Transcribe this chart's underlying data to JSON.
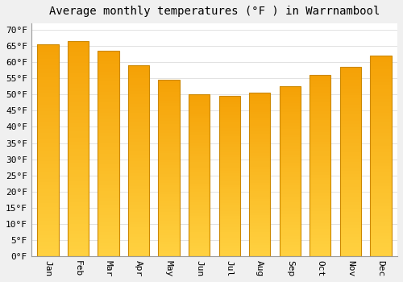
{
  "title": "Average monthly temperatures (°F ) in Warrnambool",
  "months": [
    "Jan",
    "Feb",
    "Mar",
    "Apr",
    "May",
    "Jun",
    "Jul",
    "Aug",
    "Sep",
    "Oct",
    "Nov",
    "Dec"
  ],
  "values": [
    65.5,
    66.5,
    63.5,
    59.0,
    54.5,
    50.0,
    49.5,
    50.5,
    52.5,
    56.0,
    58.5,
    62.0
  ],
  "bar_color_bottom": "#FFD040",
  "bar_color_top": "#F5A000",
  "bar_edge_color": "#CC8800",
  "background_color": "#f0f0f0",
  "plot_bg_color": "#ffffff",
  "grid_color": "#dddddd",
  "ytick_min": 0,
  "ytick_max": 70,
  "ytick_step": 5,
  "title_fontsize": 10,
  "tick_fontsize": 8,
  "font_family": "monospace"
}
